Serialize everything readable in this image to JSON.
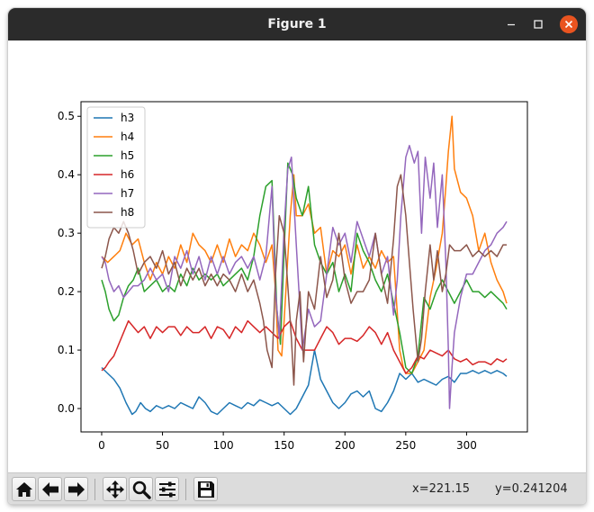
{
  "window": {
    "title": "Figure 1"
  },
  "toolbar": {
    "buttons": [
      {
        "name": "home-button",
        "icon": "home-icon"
      },
      {
        "name": "back-button",
        "icon": "arrow-left-icon"
      },
      {
        "name": "forward-button",
        "icon": "arrow-right-icon"
      },
      {
        "name": "pan-button",
        "icon": "move-icon"
      },
      {
        "name": "zoom-button",
        "icon": "magnifier-icon"
      },
      {
        "name": "configure-subplots-button",
        "icon": "sliders-icon"
      },
      {
        "name": "save-button",
        "icon": "floppy-icon"
      }
    ],
    "x_readout": "x=221.15",
    "y_readout": "y=0.241204"
  },
  "chart_data": {
    "type": "line",
    "title": "",
    "xlabel": "",
    "ylabel": "",
    "xlim": [
      -17,
      350
    ],
    "ylim": [
      -0.04,
      0.525
    ],
    "xticks": [
      0,
      50,
      100,
      150,
      200,
      250,
      300
    ],
    "yticks": [
      0.0,
      0.1,
      0.2,
      0.3,
      0.4,
      0.5
    ],
    "xtick_labels": [
      "0",
      "50",
      "100",
      "150",
      "200",
      "250",
      "300"
    ],
    "ytick_labels": [
      "0.0",
      "0.1",
      "0.2",
      "0.3",
      "0.4",
      "0.5"
    ],
    "grid": false,
    "legend": "upper-left",
    "series": [
      {
        "name": "h3",
        "color": "#1f77b4",
        "x": [
          0,
          5,
          10,
          15,
          20,
          25,
          28,
          32,
          36,
          40,
          45,
          50,
          55,
          60,
          65,
          70,
          75,
          80,
          85,
          90,
          95,
          100,
          105,
          110,
          115,
          120,
          125,
          130,
          135,
          140,
          145,
          150,
          155,
          160,
          165,
          170,
          175,
          180,
          185,
          190,
          195,
          200,
          205,
          210,
          215,
          220,
          225,
          230,
          235,
          240,
          245,
          250,
          255,
          260,
          265,
          270,
          275,
          280,
          285,
          290,
          295,
          300,
          305,
          310,
          315,
          320,
          325,
          330,
          333
        ],
        "y": [
          0.07,
          0.06,
          0.05,
          0.035,
          0.01,
          -0.01,
          -0.005,
          0.01,
          0.0,
          -0.005,
          0.005,
          0.0,
          0.005,
          0.0,
          0.01,
          0.005,
          0.0,
          0.02,
          0.01,
          -0.005,
          -0.01,
          0.0,
          0.01,
          0.005,
          0.0,
          0.01,
          0.005,
          0.015,
          0.01,
          0.005,
          0.01,
          0.0,
          -0.01,
          0.0,
          0.02,
          0.04,
          0.1,
          0.05,
          0.03,
          0.01,
          0.0,
          0.01,
          0.025,
          0.03,
          0.02,
          0.03,
          0.0,
          -0.005,
          0.01,
          0.03,
          0.06,
          0.05,
          0.06,
          0.045,
          0.05,
          0.045,
          0.04,
          0.05,
          0.055,
          0.045,
          0.06,
          0.06,
          0.065,
          0.06,
          0.065,
          0.06,
          0.065,
          0.06,
          0.055
        ]
      },
      {
        "name": "h4",
        "color": "#ff7f0e",
        "x": [
          0,
          5,
          10,
          15,
          20,
          25,
          30,
          35,
          40,
          45,
          50,
          55,
          60,
          65,
          70,
          75,
          80,
          85,
          90,
          95,
          100,
          105,
          110,
          115,
          120,
          125,
          130,
          135,
          140,
          143,
          145,
          148,
          150,
          155,
          158,
          160,
          165,
          170,
          175,
          180,
          185,
          190,
          195,
          200,
          205,
          210,
          215,
          220,
          225,
          230,
          235,
          240,
          245,
          248,
          250,
          255,
          260,
          265,
          270,
          275,
          280,
          283,
          285,
          288,
          290,
          295,
          300,
          305,
          310,
          315,
          320,
          325,
          330,
          333
        ],
        "y": [
          0.26,
          0.25,
          0.26,
          0.27,
          0.3,
          0.28,
          0.29,
          0.25,
          0.22,
          0.25,
          0.23,
          0.26,
          0.24,
          0.28,
          0.25,
          0.3,
          0.28,
          0.27,
          0.25,
          0.28,
          0.25,
          0.29,
          0.26,
          0.28,
          0.27,
          0.3,
          0.28,
          0.25,
          0.28,
          0.2,
          0.1,
          0.09,
          0.15,
          0.33,
          0.4,
          0.33,
          0.33,
          0.35,
          0.3,
          0.31,
          0.23,
          0.27,
          0.26,
          0.28,
          0.23,
          0.28,
          0.24,
          0.26,
          0.24,
          0.27,
          0.25,
          0.26,
          0.1,
          0.07,
          0.06,
          0.06,
          0.08,
          0.1,
          0.19,
          0.24,
          0.3,
          0.38,
          0.44,
          0.5,
          0.41,
          0.37,
          0.36,
          0.33,
          0.27,
          0.3,
          0.25,
          0.22,
          0.2,
          0.18
        ]
      },
      {
        "name": "h5",
        "color": "#2ca02c",
        "x": [
          0,
          3,
          6,
          10,
          14,
          18,
          22,
          26,
          30,
          35,
          40,
          45,
          50,
          55,
          60,
          65,
          70,
          75,
          80,
          85,
          90,
          95,
          100,
          105,
          110,
          115,
          120,
          125,
          130,
          135,
          140,
          144,
          147,
          150,
          153,
          157,
          160,
          165,
          170,
          175,
          180,
          185,
          190,
          195,
          200,
          205,
          210,
          215,
          220,
          225,
          230,
          235,
          240,
          245,
          250,
          255,
          260,
          265,
          270,
          275,
          280,
          285,
          290,
          295,
          300,
          305,
          310,
          315,
          320,
          325,
          330,
          333
        ],
        "y": [
          0.22,
          0.2,
          0.17,
          0.15,
          0.16,
          0.19,
          0.21,
          0.22,
          0.24,
          0.2,
          0.21,
          0.22,
          0.2,
          0.21,
          0.2,
          0.23,
          0.21,
          0.24,
          0.22,
          0.23,
          0.22,
          0.23,
          0.21,
          0.22,
          0.23,
          0.24,
          0.22,
          0.26,
          0.33,
          0.38,
          0.39,
          0.17,
          0.11,
          0.27,
          0.42,
          0.4,
          0.36,
          0.33,
          0.38,
          0.28,
          0.25,
          0.23,
          0.25,
          0.2,
          0.23,
          0.2,
          0.3,
          0.27,
          0.25,
          0.22,
          0.2,
          0.23,
          0.18,
          0.13,
          0.07,
          0.06,
          0.09,
          0.19,
          0.17,
          0.2,
          0.22,
          0.2,
          0.18,
          0.2,
          0.22,
          0.2,
          0.2,
          0.19,
          0.2,
          0.19,
          0.18,
          0.17
        ]
      },
      {
        "name": "h6",
        "color": "#d62728",
        "x": [
          0,
          3,
          6,
          10,
          14,
          18,
          22,
          26,
          30,
          35,
          40,
          45,
          50,
          55,
          60,
          65,
          70,
          75,
          80,
          85,
          90,
          95,
          100,
          105,
          110,
          115,
          120,
          125,
          130,
          135,
          140,
          145,
          150,
          155,
          160,
          165,
          170,
          175,
          180,
          185,
          190,
          195,
          200,
          205,
          210,
          215,
          220,
          225,
          230,
          235,
          240,
          245,
          250,
          255,
          260,
          265,
          270,
          275,
          280,
          285,
          290,
          295,
          300,
          305,
          310,
          315,
          320,
          325,
          330,
          333
        ],
        "y": [
          0.065,
          0.07,
          0.08,
          0.09,
          0.11,
          0.13,
          0.15,
          0.14,
          0.13,
          0.14,
          0.12,
          0.14,
          0.13,
          0.14,
          0.14,
          0.125,
          0.14,
          0.13,
          0.13,
          0.14,
          0.12,
          0.14,
          0.135,
          0.12,
          0.14,
          0.13,
          0.15,
          0.14,
          0.13,
          0.14,
          0.13,
          0.12,
          0.14,
          0.15,
          0.12,
          0.1,
          0.1,
          0.1,
          0.12,
          0.14,
          0.13,
          0.11,
          0.12,
          0.12,
          0.115,
          0.125,
          0.14,
          0.13,
          0.11,
          0.13,
          0.1,
          0.08,
          0.06,
          0.07,
          0.09,
          0.085,
          0.1,
          0.095,
          0.09,
          0.1,
          0.085,
          0.08,
          0.085,
          0.075,
          0.08,
          0.08,
          0.075,
          0.085,
          0.08,
          0.085
        ]
      },
      {
        "name": "h7",
        "color": "#9467bd",
        "x": [
          0,
          3,
          6,
          10,
          14,
          18,
          22,
          26,
          30,
          35,
          40,
          45,
          50,
          55,
          60,
          65,
          70,
          75,
          80,
          85,
          90,
          95,
          100,
          105,
          110,
          115,
          120,
          125,
          130,
          135,
          140,
          143,
          146,
          150,
          153,
          156,
          160,
          165,
          170,
          175,
          180,
          185,
          190,
          195,
          200,
          205,
          210,
          215,
          220,
          225,
          230,
          235,
          240,
          243,
          246,
          250,
          253,
          257,
          260,
          263,
          266,
          270,
          273,
          276,
          280,
          283,
          285,
          286,
          288,
          290,
          295,
          300,
          305,
          310,
          315,
          320,
          325,
          330,
          333
        ],
        "y": [
          0.26,
          0.25,
          0.22,
          0.2,
          0.21,
          0.19,
          0.2,
          0.21,
          0.21,
          0.22,
          0.24,
          0.22,
          0.23,
          0.2,
          0.26,
          0.24,
          0.27,
          0.23,
          0.26,
          0.22,
          0.26,
          0.23,
          0.26,
          0.23,
          0.25,
          0.26,
          0.24,
          0.26,
          0.22,
          0.26,
          0.38,
          0.2,
          0.12,
          0.31,
          0.41,
          0.43,
          0.28,
          0.1,
          0.17,
          0.14,
          0.15,
          0.23,
          0.31,
          0.28,
          0.3,
          0.25,
          0.32,
          0.29,
          0.26,
          0.3,
          0.23,
          0.26,
          0.16,
          0.22,
          0.33,
          0.43,
          0.45,
          0.42,
          0.44,
          0.3,
          0.43,
          0.36,
          0.42,
          0.31,
          0.4,
          0.25,
          0.1,
          0.0,
          0.07,
          0.13,
          0.19,
          0.23,
          0.23,
          0.25,
          0.27,
          0.28,
          0.3,
          0.31,
          0.32
        ]
      },
      {
        "name": "h8",
        "color": "#8c564b",
        "x": [
          0,
          3,
          6,
          10,
          14,
          18,
          22,
          26,
          30,
          35,
          40,
          45,
          50,
          55,
          60,
          65,
          70,
          75,
          80,
          85,
          90,
          95,
          100,
          105,
          110,
          115,
          120,
          125,
          130,
          133,
          136,
          140,
          143,
          146,
          150,
          153,
          156,
          158,
          160,
          163,
          166,
          170,
          175,
          180,
          185,
          190,
          195,
          200,
          205,
          210,
          215,
          220,
          225,
          230,
          235,
          240,
          243,
          246,
          250,
          253,
          256,
          260,
          263,
          266,
          270,
          273,
          276,
          280,
          283,
          286,
          290,
          295,
          300,
          305,
          310,
          315,
          320,
          325,
          330,
          333
        ],
        "y": [
          0.24,
          0.26,
          0.29,
          0.31,
          0.3,
          0.32,
          0.3,
          0.27,
          0.23,
          0.25,
          0.26,
          0.24,
          0.27,
          0.23,
          0.25,
          0.21,
          0.24,
          0.22,
          0.24,
          0.21,
          0.23,
          0.21,
          0.23,
          0.22,
          0.2,
          0.23,
          0.2,
          0.22,
          0.18,
          0.15,
          0.1,
          0.07,
          0.23,
          0.33,
          0.3,
          0.21,
          0.12,
          0.04,
          0.15,
          0.2,
          0.08,
          0.2,
          0.17,
          0.26,
          0.19,
          0.22,
          0.3,
          0.22,
          0.18,
          0.2,
          0.2,
          0.22,
          0.3,
          0.23,
          0.18,
          0.29,
          0.38,
          0.4,
          0.33,
          0.25,
          0.17,
          0.08,
          0.12,
          0.2,
          0.28,
          0.22,
          0.27,
          0.2,
          0.23,
          0.28,
          0.27,
          0.27,
          0.28,
          0.26,
          0.27,
          0.26,
          0.27,
          0.26,
          0.28,
          0.28
        ]
      }
    ]
  }
}
